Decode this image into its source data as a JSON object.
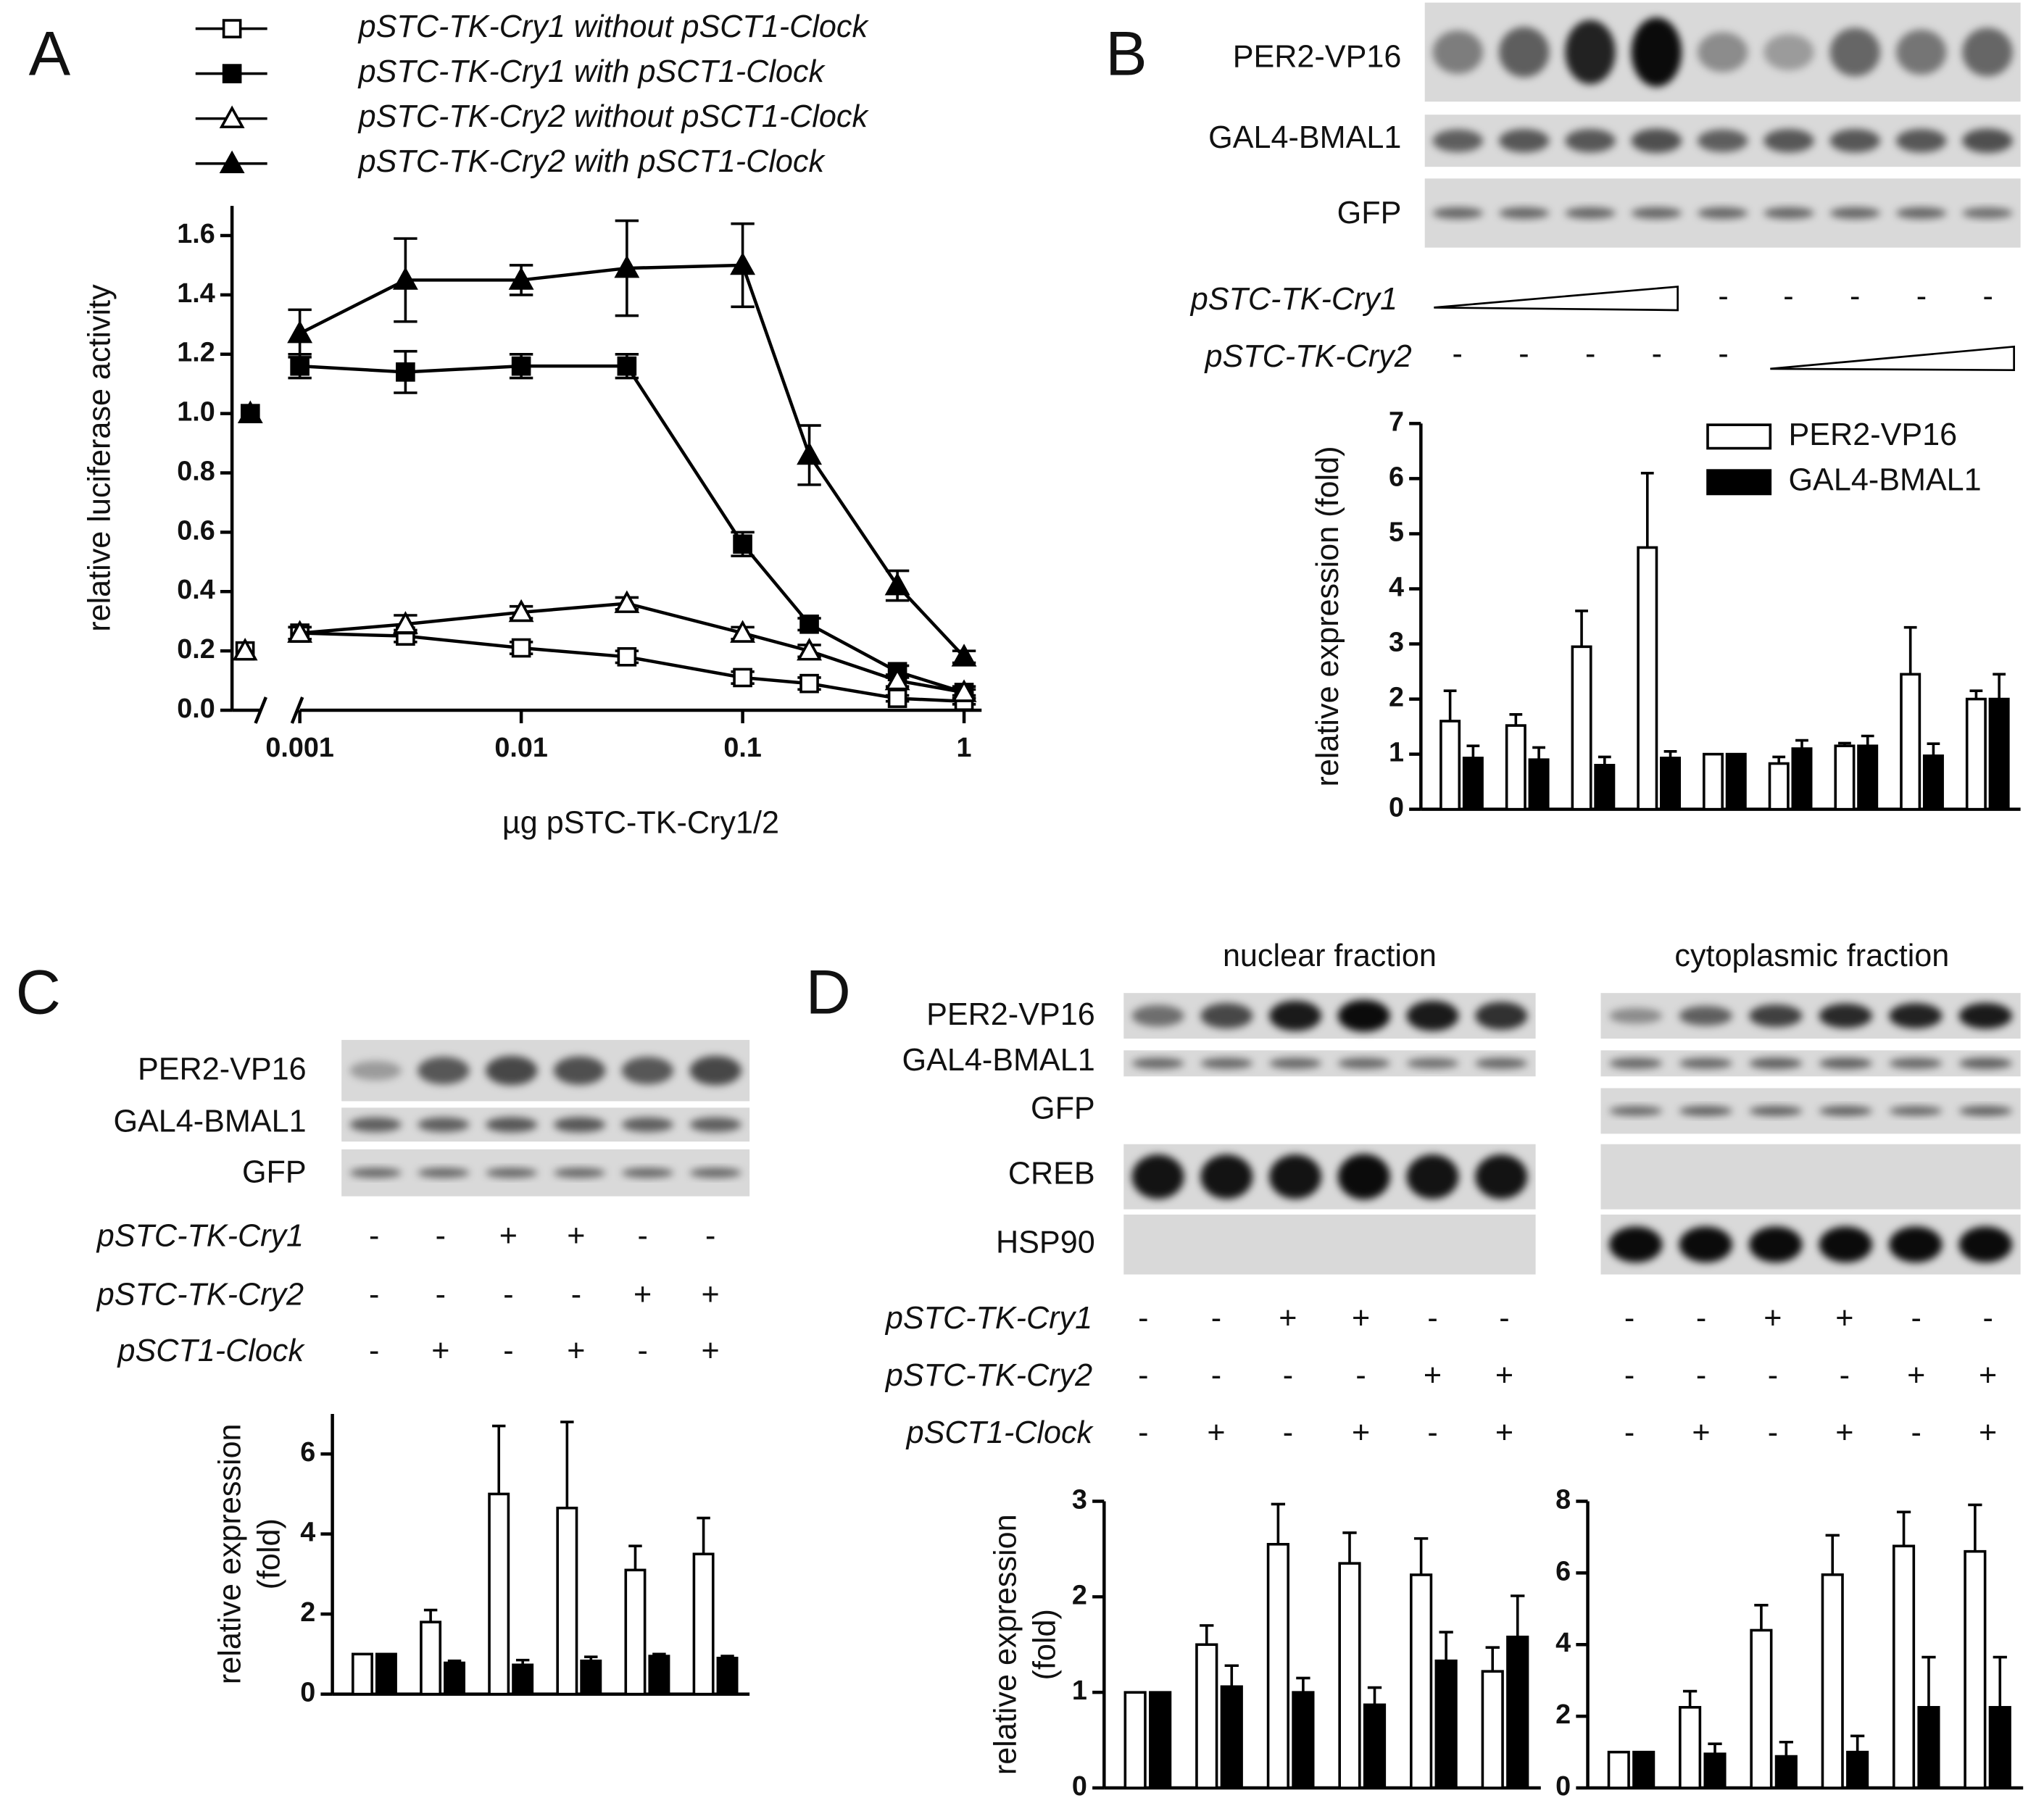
{
  "figure": {
    "panels": [
      {
        "label": "A"
      },
      {
        "label": "B",
        "blot_rows": [
          "PER2-VP16",
          "GAL4-BMAL1",
          "GFP"
        ],
        "treatments": [
          {
            "name": "pSTC-TK-Cry1",
            "marks": [
              "-",
              "-",
              "-",
              "-",
              "-"
            ]
          },
          {
            "name": "pSTC-TK-Cry2",
            "marks": [
              "-",
              "-",
              "-",
              "-",
              "-"
            ]
          }
        ]
      },
      {
        "label": "C",
        "blot_rows": [
          "PER2-VP16",
          "GAL4-BMAL1",
          "GFP"
        ],
        "treatments": [
          {
            "name": "pSTC-TK-Cry1",
            "marks": [
              "-",
              "-",
              "+",
              "+",
              "-",
              "-"
            ]
          },
          {
            "name": "pSTC-TK-Cry2",
            "marks": [
              "-",
              "-",
              "-",
              "-",
              "+",
              "+"
            ]
          },
          {
            "name": "pSCT1-Clock",
            "marks": [
              "-",
              "+",
              "-",
              "+",
              "-",
              "+"
            ]
          }
        ]
      },
      {
        "label": "D",
        "fractions": [
          "nuclear fraction",
          "cytoplasmic fraction"
        ],
        "blot_rows": [
          "PER2-VP16",
          "GAL4-BMAL1",
          "GFP",
          "CREB",
          "HSP90"
        ],
        "treatments": [
          {
            "name": "pSTC-TK-Cry1",
            "marks": [
              "-",
              "-",
              "+",
              "+",
              "-",
              "-"
            ]
          },
          {
            "name": "pSTC-TK-Cry2",
            "marks": [
              "-",
              "-",
              "-",
              "-",
              "+",
              "+"
            ]
          },
          {
            "name": "pSCT1-Clock",
            "marks": [
              "-",
              "+",
              "-",
              "+",
              "-",
              "+"
            ]
          }
        ]
      }
    ]
  },
  "chart_data": [
    {
      "type": "line",
      "log_x": true,
      "ylabel": "relative luciferase activity",
      "xlabel": "µg pSTC-TK-Cry1/2",
      "x": [
        0.001,
        0.003,
        0.01,
        0.03,
        0.1,
        0.2,
        0.5,
        1
      ],
      "xlim": [
        0.001,
        1.2
      ],
      "xticks": [
        0.001,
        0.01,
        0.1,
        1
      ],
      "ylim": [
        0,
        1.7
      ],
      "yticks": [
        {
          "value": 0,
          "label": "0.0"
        },
        0.2,
        0.4,
        0.6,
        0.8,
        {
          "value": 1,
          "label": "1.0"
        },
        1.2,
        1.4,
        1.6
      ],
      "series": [
        {
          "name": "pSTC-TK-Cry1 without pSCT1-Clock",
          "marker": "square",
          "filled": false,
          "color": "#000000",
          "control": 0.2,
          "values": [
            0.26,
            0.25,
            0.21,
            0.18,
            0.11,
            0.09,
            0.04,
            0.03
          ],
          "errors": [
            0.02,
            0.02,
            0.02,
            0.02,
            0.02,
            0.02,
            0.01,
            0.01
          ]
        },
        {
          "name": "pSTC-TK-Cry1 with pSCT1-Clock",
          "marker": "square",
          "filled": true,
          "color": "#000000",
          "control": 1.0,
          "values": [
            1.16,
            1.14,
            1.16,
            1.16,
            0.56,
            0.29,
            0.13,
            0.06
          ],
          "errors": [
            0.04,
            0.07,
            0.04,
            0.04,
            0.04,
            0.02,
            0.02,
            0.02
          ]
        },
        {
          "name": "pSTC-TK-Cry2 without pSCT1-Clock",
          "marker": "triangle",
          "filled": false,
          "color": "#000000",
          "control": 0.2,
          "values": [
            0.26,
            0.29,
            0.33,
            0.36,
            0.26,
            0.2,
            0.1,
            0.06
          ],
          "errors": [
            0.02,
            0.03,
            0.02,
            0.02,
            0.02,
            0.02,
            0.02,
            0.01
          ]
        },
        {
          "name": "pSTC-TK-Cry2 with pSCT1-Clock",
          "marker": "triangle",
          "filled": true,
          "color": "#000000",
          "control": 1.0,
          "values": [
            1.27,
            1.45,
            1.45,
            1.49,
            1.5,
            0.86,
            0.42,
            0.18
          ],
          "errors": [
            0.08,
            0.14,
            0.05,
            0.16,
            0.14,
            0.1,
            0.05,
            0.02
          ]
        }
      ]
    },
    {
      "type": "bar",
      "ylabel": "relative expression (fold)",
      "legend": "upper right",
      "categories": [
        null,
        null,
        null,
        null,
        null,
        null,
        null,
        null,
        null
      ],
      "ylim": [
        0,
        7
      ],
      "yticks": [
        0,
        1,
        2,
        3,
        4,
        5,
        6,
        7
      ],
      "series": [
        {
          "name": "PER2-VP16",
          "color": "#ffffff",
          "values": [
            1.6,
            1.52,
            2.95,
            4.75,
            1.0,
            0.83,
            1.15,
            2.45,
            2.0
          ],
          "errors": [
            0.55,
            0.2,
            0.65,
            1.35,
            0,
            0.12,
            0.05,
            0.85,
            0.15
          ]
        },
        {
          "name": "GAL4-BMAL1",
          "color": "#000000",
          "values": [
            0.93,
            0.9,
            0.8,
            0.93,
            1.0,
            1.1,
            1.15,
            0.97,
            2.0
          ],
          "errors": [
            0.22,
            0.22,
            0.15,
            0.12,
            0,
            0.15,
            0.18,
            0.22,
            0.45
          ]
        }
      ]
    },
    {
      "type": "bar",
      "ylabel": [
        "relative expression",
        "(fold)"
      ],
      "categories": [
        null,
        null,
        null,
        null,
        null,
        null
      ],
      "ylim": [
        0,
        7
      ],
      "yticks": [
        0,
        2,
        4,
        6
      ],
      "series": [
        {
          "color": "#ffffff",
          "values": [
            1,
            1.8,
            5.0,
            4.65,
            3.1,
            3.5
          ],
          "errors": [
            0,
            0.3,
            1.7,
            2.15,
            0.6,
            0.9
          ]
        },
        {
          "color": "#000000",
          "values": [
            1,
            0.78,
            0.73,
            0.83,
            0.95,
            0.9
          ],
          "errors": [
            0,
            0.05,
            0.12,
            0.1,
            0.05,
            0.05
          ]
        }
      ]
    },
    {
      "type": "bar",
      "ylabel": [
        "relative expression",
        "(fold)"
      ],
      "categories": [
        null,
        null,
        null,
        null,
        null,
        null
      ],
      "ylim": [
        0,
        3
      ],
      "yticks": [
        0,
        1,
        2,
        3
      ],
      "series": [
        {
          "color": "#ffffff",
          "values": [
            1,
            1.5,
            2.55,
            2.35,
            2.23,
            1.22
          ],
          "errors": [
            0,
            0.2,
            0.42,
            0.32,
            0.38,
            0.25
          ]
        },
        {
          "color": "#000000",
          "values": [
            1,
            1.06,
            1.0,
            0.87,
            1.33,
            1.58
          ],
          "errors": [
            0,
            0.22,
            0.15,
            0.18,
            0.3,
            0.43
          ]
        }
      ]
    },
    {
      "type": "bar",
      "categories": [
        null,
        null,
        null,
        null,
        null,
        null
      ],
      "ylim": [
        0,
        8
      ],
      "yticks": [
        0,
        2,
        4,
        6,
        8
      ],
      "series": [
        {
          "color": "#ffffff",
          "values": [
            1,
            2.25,
            4.4,
            5.95,
            6.75,
            6.6
          ],
          "errors": [
            0,
            0.45,
            0.7,
            1.1,
            0.95,
            1.3
          ]
        },
        {
          "color": "#000000",
          "values": [
            1,
            0.95,
            0.88,
            1.0,
            2.25,
            2.25
          ],
          "errors": [
            0,
            0.28,
            0.4,
            0.45,
            1.4,
            1.4
          ]
        }
      ]
    }
  ]
}
